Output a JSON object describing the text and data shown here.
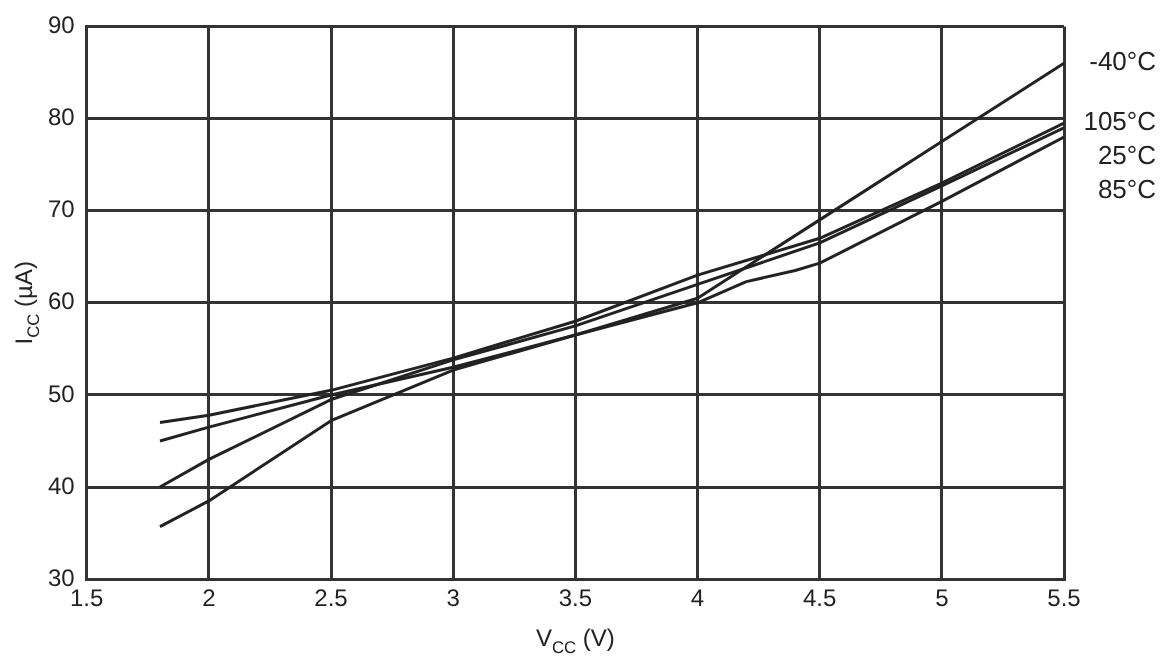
{
  "chart_data": {
    "type": "line",
    "xlabel": "V$_{CC}$ (V)",
    "ylabel": "I$_{CC}$ (µA)",
    "xlim": [
      1.5,
      5.5
    ],
    "xticks": [
      1.5,
      2,
      2.5,
      3,
      3.5,
      4,
      4.5,
      5,
      5.5
    ],
    "ylim": [
      30,
      90
    ],
    "yticks": [
      30,
      40,
      50,
      60,
      70,
      80,
      90
    ],
    "grid": true,
    "legend": false,
    "marker": "none",
    "line_style": "solid",
    "series": [
      {
        "name": "-40°C",
        "color": "#222222",
        "x": [
          1.8,
          2,
          2.5,
          3,
          3.5,
          4,
          4.5,
          5,
          5.5
        ],
        "values": [
          35.7,
          38.5,
          47.2,
          52.7,
          56.5,
          60.5,
          69,
          77.5,
          86
        ]
      },
      {
        "name": "105°C",
        "color": "#222222",
        "x": [
          1.8,
          2,
          2.5,
          3,
          3.5,
          4,
          4.5,
          5,
          5.5
        ],
        "values": [
          47,
          47.8,
          50.5,
          54,
          58,
          63,
          67,
          73,
          79.5
        ]
      },
      {
        "name": "25°C",
        "color": "#222222",
        "x": [
          1.8,
          2,
          2.5,
          3,
          3.5,
          4,
          4.5,
          5,
          5.5
        ],
        "values": [
          40,
          43,
          49.5,
          53.8,
          57.5,
          62,
          66.5,
          72.7,
          79
        ]
      },
      {
        "name": "85°C",
        "color": "#222222",
        "x": [
          1.8,
          2,
          2.5,
          3,
          3.5,
          4,
          4.2,
          4.4,
          4.5,
          5,
          5.5
        ],
        "values": [
          45,
          46.5,
          50,
          53,
          56.5,
          60,
          62.3,
          63.5,
          64.3,
          71,
          78
        ]
      }
    ]
  }
}
